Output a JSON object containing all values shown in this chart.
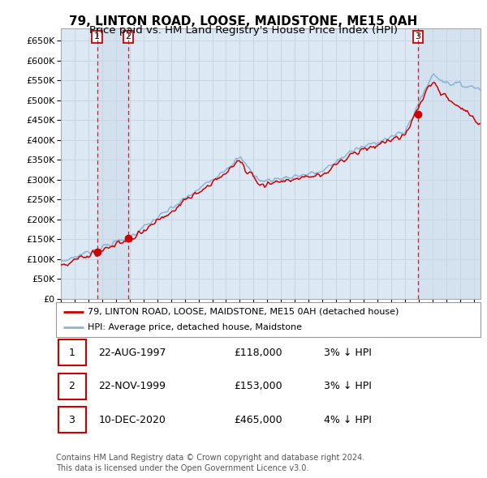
{
  "title": "79, LINTON ROAD, LOOSE, MAIDSTONE, ME15 0AH",
  "subtitle": "Price paid vs. HM Land Registry's House Price Index (HPI)",
  "ylim": [
    0,
    680000
  ],
  "yticks": [
    0,
    50000,
    100000,
    150000,
    200000,
    250000,
    300000,
    350000,
    400000,
    450000,
    500000,
    550000,
    600000,
    650000
  ],
  "ytick_labels": [
    "£0",
    "£50K",
    "£100K",
    "£150K",
    "£200K",
    "£250K",
    "£300K",
    "£350K",
    "£400K",
    "£450K",
    "£500K",
    "£550K",
    "£600K",
    "£650K"
  ],
  "grid_color": "#c8d4e0",
  "plot_bg": "#dce9f5",
  "price_paid_color": "#cc0000",
  "hpi_color": "#8ab4d4",
  "shade_color": "#dce9f5",
  "legend1": "79, LINTON ROAD, LOOSE, MAIDSTONE, ME15 0AH (detached house)",
  "legend2": "HPI: Average price, detached house, Maidstone",
  "sales": [
    {
      "date_num": 1997.64,
      "price": 118000,
      "label": "1"
    },
    {
      "date_num": 1999.9,
      "price": 153000,
      "label": "2"
    },
    {
      "date_num": 2020.94,
      "price": 465000,
      "label": "3"
    }
  ],
  "sale_dates": [
    "22-AUG-1997",
    "22-NOV-1999",
    "10-DEC-2020"
  ],
  "sale_prices": [
    "£118,000",
    "£153,000",
    "£465,000"
  ],
  "sale_hpi": [
    "3% ↓ HPI",
    "3% ↓ HPI",
    "4% ↓ HPI"
  ],
  "footer": "Contains HM Land Registry data © Crown copyright and database right 2024.\nThis data is licensed under the Open Government Licence v3.0.",
  "title_fontsize": 11,
  "subtitle_fontsize": 9.5,
  "xlim_start": 1995.0,
  "xlim_end": 2025.5
}
